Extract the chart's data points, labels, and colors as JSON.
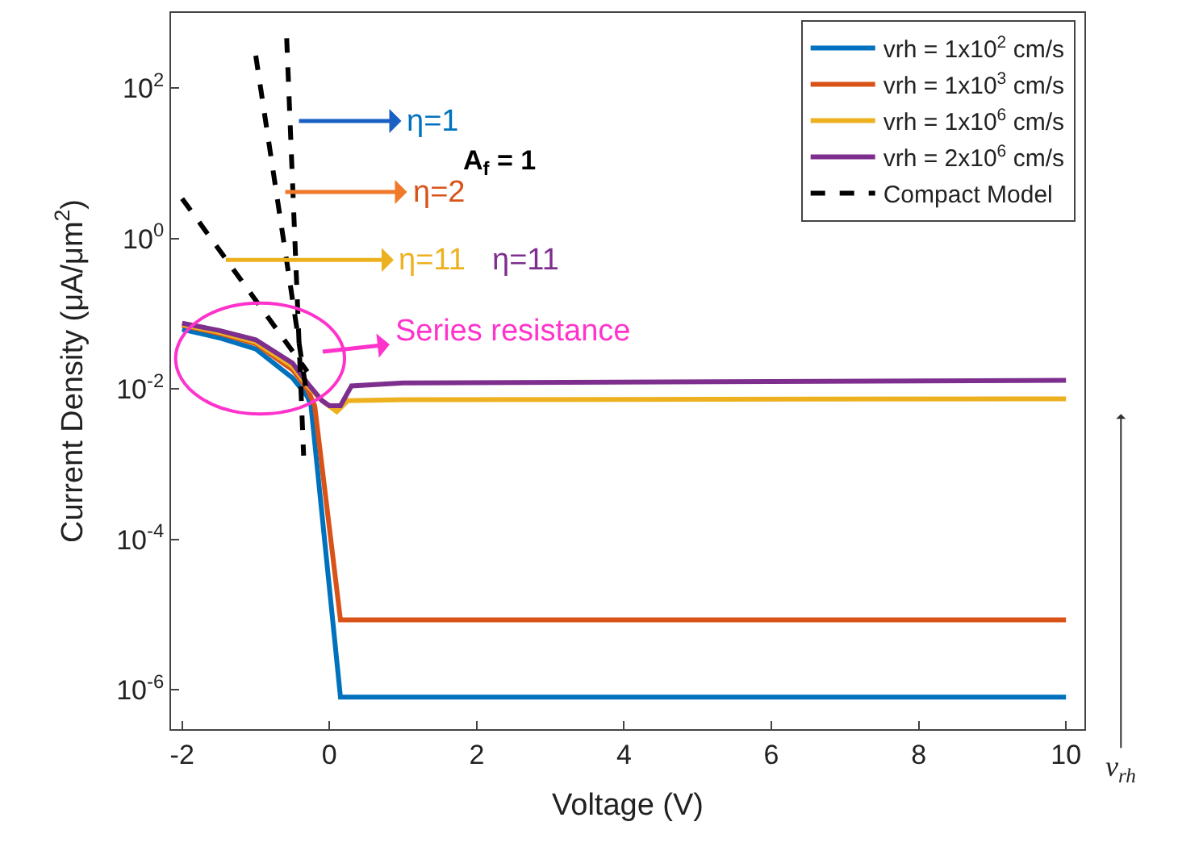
{
  "chart_data": {
    "type": "line",
    "xlabel": "Voltage (V)",
    "ylabel": "Current Density (μA/μm$^{2}$)",
    "log": "y",
    "legend": "top right",
    "marker": "none",
    "xlim": [
      -2.15,
      10.25
    ],
    "xticks": [
      -2,
      0,
      2,
      4,
      6,
      8,
      10
    ],
    "ylim": [
      3e-07,
      1000
    ],
    "yticks": [
      {
        "value": 1e-06,
        "label": "10$^{-6}$"
      },
      {
        "value": 0.0001,
        "label": "10$^{-4}$"
      },
      {
        "value": 0.01,
        "label": "10$^{-2}$"
      },
      {
        "value": 1,
        "label": "10$^{0}$"
      },
      {
        "value": 100,
        "label": "10$^{2}$"
      }
    ],
    "series": [
      {
        "name": "vrh = 1x10$^{2}$ cm/s",
        "color": "#0072bd",
        "x": [
          -2,
          -1.5,
          -1,
          -0.5,
          -0.3,
          -0.25,
          0.15,
          10
        ],
        "values": [
          0.062,
          0.048,
          0.034,
          0.014,
          0.008,
          0.006,
          8e-07,
          8e-07
        ]
      },
      {
        "name": "vrh = 1x10$^{3}$ cm/s",
        "color": "#d95319",
        "x": [
          -2,
          -1.5,
          -1,
          -0.5,
          -0.3,
          -0.2,
          0.15,
          10
        ],
        "values": [
          0.07,
          0.055,
          0.04,
          0.018,
          0.01,
          0.006,
          8.5e-06,
          8.5e-06
        ]
      },
      {
        "name": "vrh = 1x10$^{6}$ cm/s",
        "color": "#edb120",
        "x": [
          -2,
          -1.5,
          -1,
          -0.5,
          -0.3,
          -0.1,
          0.1,
          0.25,
          1,
          10
        ],
        "values": [
          0.072,
          0.057,
          0.042,
          0.02,
          0.011,
          0.007,
          0.005,
          0.007,
          0.0072,
          0.0074
        ]
      },
      {
        "name": "vrh = 2x10$^{6}$ cm/s",
        "color": "#7e2f8e",
        "x": [
          -2,
          -1.5,
          -1,
          -0.5,
          -0.3,
          -0.1,
          0.0,
          0.15,
          0.3,
          1,
          10
        ],
        "values": [
          0.075,
          0.06,
          0.045,
          0.022,
          0.012,
          0.007,
          0.006,
          0.006,
          0.011,
          0.012,
          0.013
        ]
      },
      {
        "name": "Compact Model",
        "color": "#000000",
        "line_style": "dashed",
        "x": [
          -2,
          -0.3
        ],
        "values": [
          3.4,
          0.017
        ]
      },
      {
        "color": "#000000",
        "line_style": "dashed",
        "x": [
          -1.0,
          -0.3
        ],
        "values": [
          270,
          0.0076
        ]
      },
      {
        "color": "#000000",
        "line_style": "dashed",
        "x": [
          -0.58,
          -0.35
        ],
        "values": [
          460,
          0.0013
        ]
      }
    ],
    "annotations": [
      "η=1",
      "η=2",
      "η=11",
      "η=11",
      "Series resistance",
      "A$_{f}$ = 1",
      "v$_{rh}$"
    ]
  }
}
